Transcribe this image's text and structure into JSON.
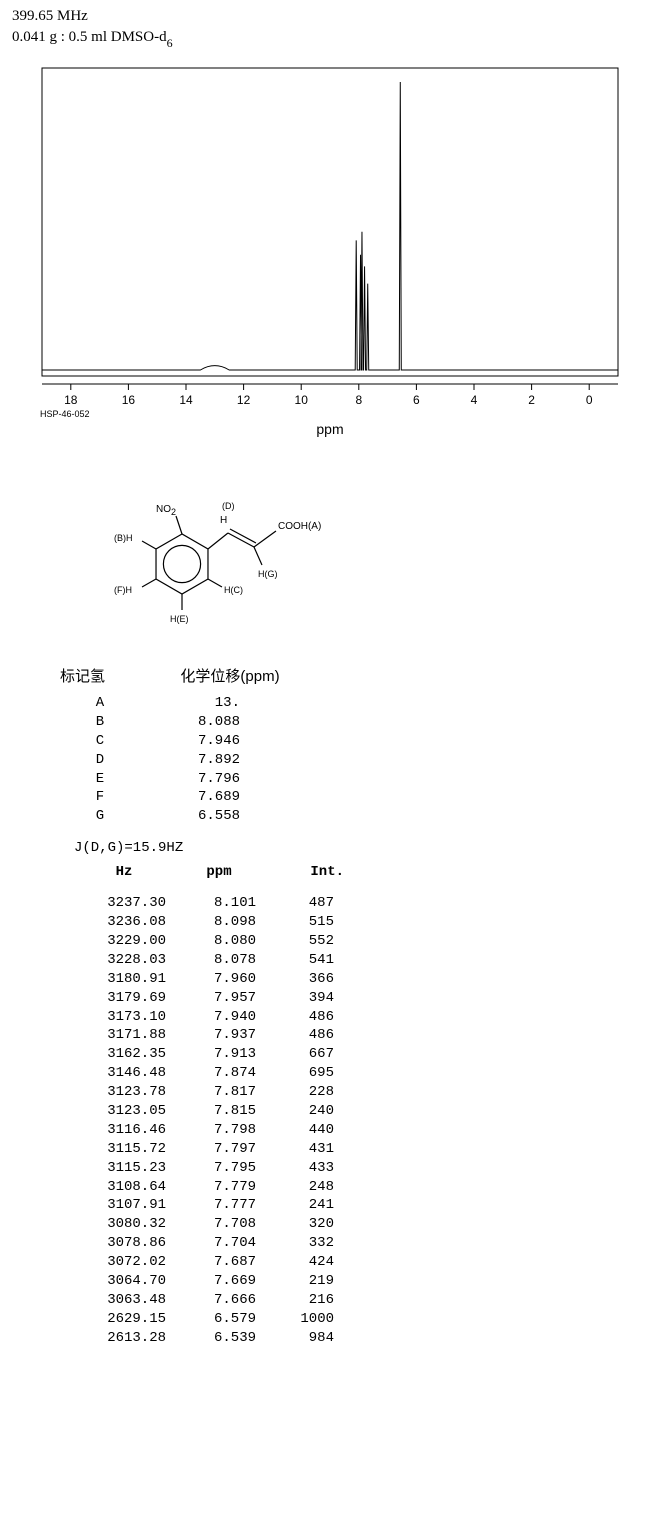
{
  "header": {
    "frequency": "399.65 MHz",
    "sample": "0.041 g : 0.5 ml DMSO-d",
    "sample_sub": "6"
  },
  "spectrum": {
    "xlim": [
      19,
      -1
    ],
    "x_ticks": [
      18,
      16,
      14,
      12,
      10,
      8,
      6,
      4,
      2,
      0
    ],
    "x_label": "ppm",
    "hsp_label": "HSP-46-052",
    "background": "#ffffff",
    "border_color": "#000000",
    "line_color": "#000000",
    "tick_fontsize": 12,
    "axis_fontsize": 14,
    "peaks": [
      {
        "ppm": 8.09,
        "height": 0.45
      },
      {
        "ppm": 7.94,
        "height": 0.4
      },
      {
        "ppm": 7.89,
        "height": 0.48
      },
      {
        "ppm": 7.8,
        "height": 0.36
      },
      {
        "ppm": 7.69,
        "height": 0.3
      },
      {
        "ppm": 6.56,
        "height": 1.0
      }
    ],
    "broad_peak": {
      "ppm": 13.0,
      "width": 1.0,
      "height": 0.015
    }
  },
  "structure": {
    "labels": {
      "A": "COOH(A)",
      "B": "(B)H",
      "C": "H(C)",
      "D": "(D)",
      "E": "H(E)",
      "F": "(F)H",
      "G": "H(G)",
      "NO2": "NO",
      "NO2_sub": "2",
      "H_D": "H"
    },
    "stroke_color": "#000000",
    "stroke_width": 1.2
  },
  "assignment": {
    "header_left": "标记氢",
    "header_right": "化学位移(ppm)",
    "rows": [
      {
        "label": "A",
        "value": "13."
      },
      {
        "label": "B",
        "value": "8.088"
      },
      {
        "label": "C",
        "value": "7.946"
      },
      {
        "label": "D",
        "value": "7.892"
      },
      {
        "label": "E",
        "value": "7.796"
      },
      {
        "label": "F",
        "value": "7.689"
      },
      {
        "label": "G",
        "value": "6.558"
      }
    ]
  },
  "coupling_text": "J(D,G)=15.9HZ",
  "peak_table": {
    "headers": {
      "hz": "Hz",
      "ppm": "ppm",
      "int": "Int."
    },
    "rows": [
      {
        "hz": "3237.30",
        "ppm": "8.101",
        "int": "487"
      },
      {
        "hz": "3236.08",
        "ppm": "8.098",
        "int": "515"
      },
      {
        "hz": "3229.00",
        "ppm": "8.080",
        "int": "552"
      },
      {
        "hz": "3228.03",
        "ppm": "8.078",
        "int": "541"
      },
      {
        "hz": "3180.91",
        "ppm": "7.960",
        "int": "366"
      },
      {
        "hz": "3179.69",
        "ppm": "7.957",
        "int": "394"
      },
      {
        "hz": "3173.10",
        "ppm": "7.940",
        "int": "486"
      },
      {
        "hz": "3171.88",
        "ppm": "7.937",
        "int": "486"
      },
      {
        "hz": "3162.35",
        "ppm": "7.913",
        "int": "667"
      },
      {
        "hz": "3146.48",
        "ppm": "7.874",
        "int": "695"
      },
      {
        "hz": "3123.78",
        "ppm": "7.817",
        "int": "228"
      },
      {
        "hz": "3123.05",
        "ppm": "7.815",
        "int": "240"
      },
      {
        "hz": "3116.46",
        "ppm": "7.798",
        "int": "440"
      },
      {
        "hz": "3115.72",
        "ppm": "7.797",
        "int": "431"
      },
      {
        "hz": "3115.23",
        "ppm": "7.795",
        "int": "433"
      },
      {
        "hz": "3108.64",
        "ppm": "7.779",
        "int": "248"
      },
      {
        "hz": "3107.91",
        "ppm": "7.777",
        "int": "241"
      },
      {
        "hz": "3080.32",
        "ppm": "7.708",
        "int": "320"
      },
      {
        "hz": "3078.86",
        "ppm": "7.704",
        "int": "332"
      },
      {
        "hz": "3072.02",
        "ppm": "7.687",
        "int": "424"
      },
      {
        "hz": "3064.70",
        "ppm": "7.669",
        "int": "219"
      },
      {
        "hz": "3063.48",
        "ppm": "7.666",
        "int": "216"
      },
      {
        "hz": "2629.15",
        "ppm": "6.579",
        "int": "1000"
      },
      {
        "hz": "2613.28",
        "ppm": "6.539",
        "int": "984"
      }
    ]
  }
}
